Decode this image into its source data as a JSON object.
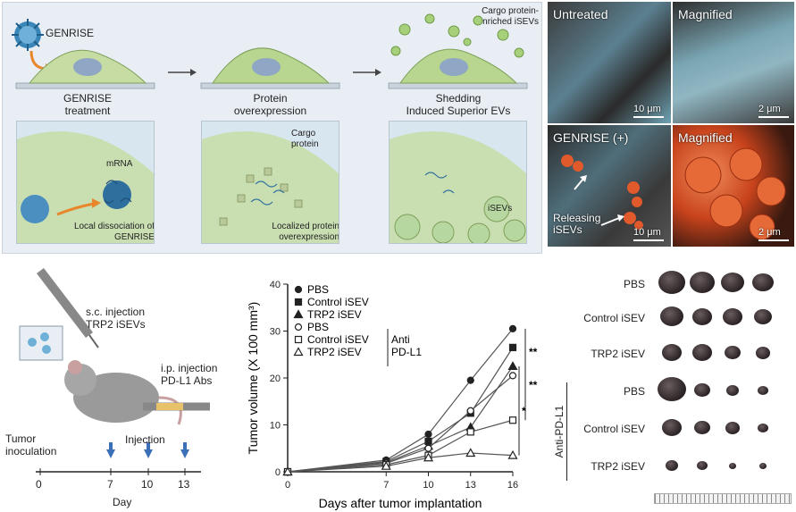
{
  "schematic": {
    "genrise_label": "GENRISE",
    "cargo_label": "Cargo protein-\nenriched iSEVs",
    "steps": [
      {
        "title": "GENRISE\ntreatment"
      },
      {
        "title": "Protein\noverexpression"
      },
      {
        "title": "Shedding\nInduced Superior EVs"
      }
    ],
    "inset1": {
      "mrna": "mRNA",
      "caption": "Local dissociation of\nGENRISE"
    },
    "inset2": {
      "cargo": "Cargo\nprotein",
      "caption": "Localized protein\noverexpression"
    },
    "inset3": {
      "isevs": "iSEVs"
    }
  },
  "sem": {
    "untreated": "Untreated",
    "magnified1": "Magnified",
    "genrise_plus": "GENRISE (+)",
    "magnified2": "Magnified",
    "releasing": "Releasing\niSEVs",
    "scale_10um_1": "10 μm",
    "scale_2um_1": "2 μm",
    "scale_10um_2": "10 μm",
    "scale_2um_2": "2 μm",
    "colors": {
      "untreated": "#6fa3b4",
      "genrise": "#e05a2b"
    }
  },
  "protocol": {
    "sc_injection": "s.c. injection\nTRP2 iSEVs",
    "ip_injection": "i.p. injection\nPD-L1 Abs",
    "tumor_inoculation": "Tumor\ninoculation",
    "injection": "Injection",
    "day_label": "Day",
    "timeline_ticks": [
      "0",
      "7",
      "10",
      "13"
    ]
  },
  "chart_data": {
    "type": "line",
    "xlabel": "Days after tumor implantation",
    "ylabel": "Tumor volume (X 100 mm³)",
    "x": [
      0,
      7,
      10,
      13,
      16
    ],
    "ylim": [
      0,
      40
    ],
    "yticks": [
      0,
      10,
      20,
      30,
      40
    ],
    "legend_group": "Anti\nPD-L1",
    "significance": [
      "**",
      "**",
      "*"
    ],
    "series": [
      {
        "name": "PBS",
        "marker": "circle",
        "filled": true,
        "values": [
          0,
          2.5,
          8,
          19.5,
          30.5
        ]
      },
      {
        "name": "Control iSEV",
        "marker": "square",
        "filled": true,
        "values": [
          0,
          2.2,
          6.5,
          12.5,
          26.5
        ]
      },
      {
        "name": "TRP2 iSEV",
        "marker": "triangle",
        "filled": true,
        "values": [
          0,
          2.0,
          5.5,
          9.5,
          22.5
        ]
      },
      {
        "name": "PBS",
        "marker": "circle",
        "filled": false,
        "values": [
          0,
          1.8,
          5.0,
          13.0,
          20.5
        ]
      },
      {
        "name": "Control iSEV",
        "marker": "square",
        "filled": false,
        "values": [
          0,
          1.5,
          3.5,
          8.5,
          11.0
        ]
      },
      {
        "name": "TRP2 iSEV",
        "marker": "triangle",
        "filled": false,
        "values": [
          0,
          1.2,
          3.0,
          4.0,
          3.5
        ]
      }
    ]
  },
  "tumors": {
    "rows": [
      "PBS",
      "Control iSEV",
      "TRP2 iSEV",
      "PBS",
      "Control iSEV",
      "TRP2 iSEV"
    ],
    "anti_label": "Anti-PD-L1",
    "sizes": [
      [
        30,
        28,
        26,
        24
      ],
      [
        26,
        22,
        22,
        20
      ],
      [
        22,
        22,
        18,
        16
      ],
      [
        32,
        18,
        14,
        12
      ],
      [
        22,
        18,
        16,
        12
      ],
      [
        14,
        12,
        8,
        8
      ]
    ]
  }
}
